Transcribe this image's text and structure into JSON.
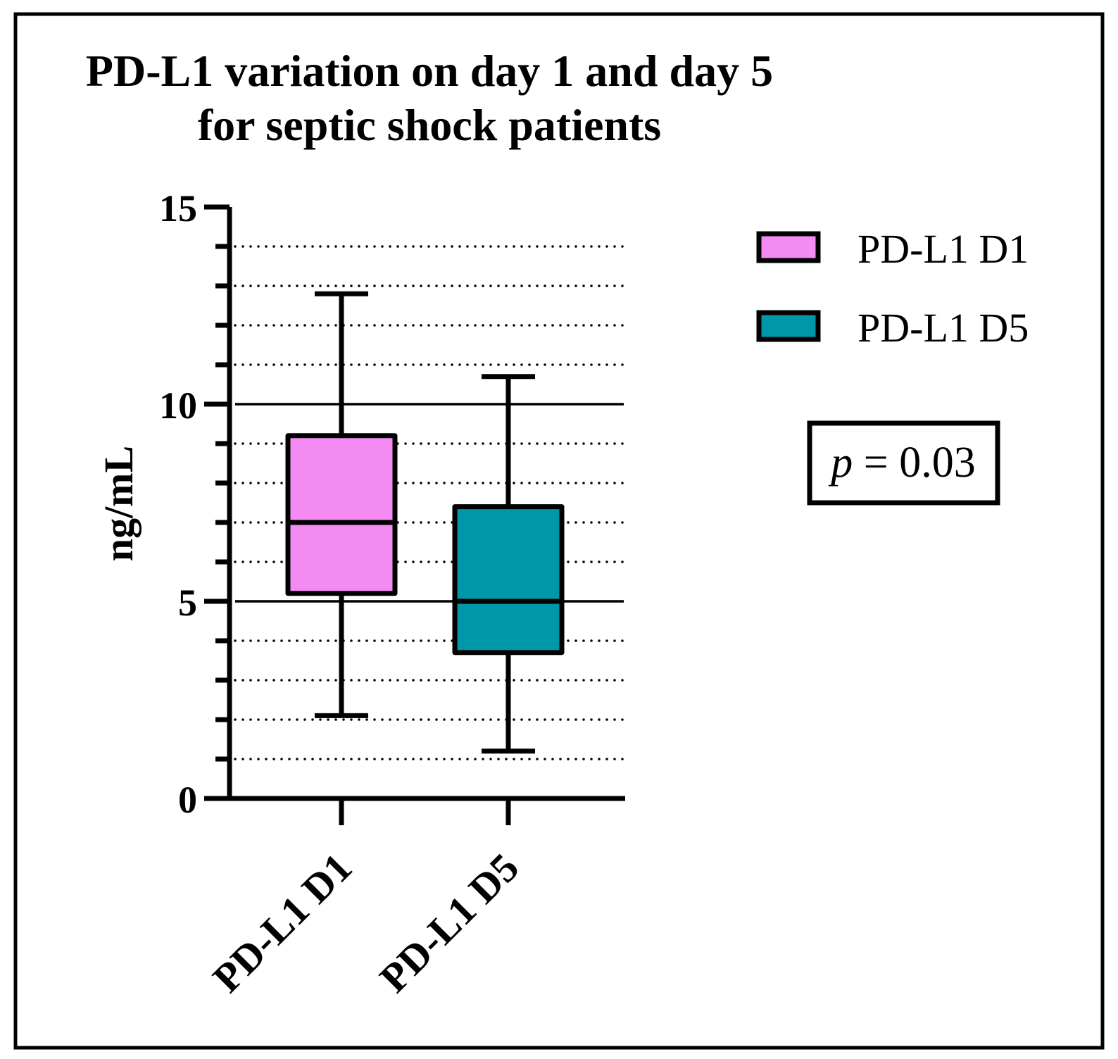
{
  "chart_data": {
    "type": "box",
    "title_lines": [
      "PD-L1 variation on day 1 and day 5",
      "for septic shock patients"
    ],
    "ylabel": "ng/mL",
    "xlabel": "",
    "ylim": [
      0,
      15
    ],
    "y_major_ticks": [
      0,
      5,
      10,
      15
    ],
    "y_minor_step": 1,
    "grid": "solid at major ticks, dotted at minor ticks",
    "categories": [
      "PD-L1 D1",
      "PD-L1 D5"
    ],
    "series": [
      {
        "name": "PD-L1 D1",
        "color": "#F38BF3",
        "min": 2.1,
        "q1": 5.2,
        "median": 7.0,
        "q3": 9.2,
        "max": 12.8
      },
      {
        "name": "PD-L1 D5",
        "color": "#0097A8",
        "min": 1.2,
        "q1": 3.7,
        "median": 5.0,
        "q3": 7.4,
        "max": 10.7
      }
    ],
    "legend": [
      {
        "label": "PD-L1 D1",
        "color": "#F38BF3"
      },
      {
        "label": "PD-L1 D5",
        "color": "#0097A8"
      }
    ],
    "legend_position": "top-right",
    "annotation": {
      "symbol": "p",
      "text": " = 0.03"
    }
  }
}
